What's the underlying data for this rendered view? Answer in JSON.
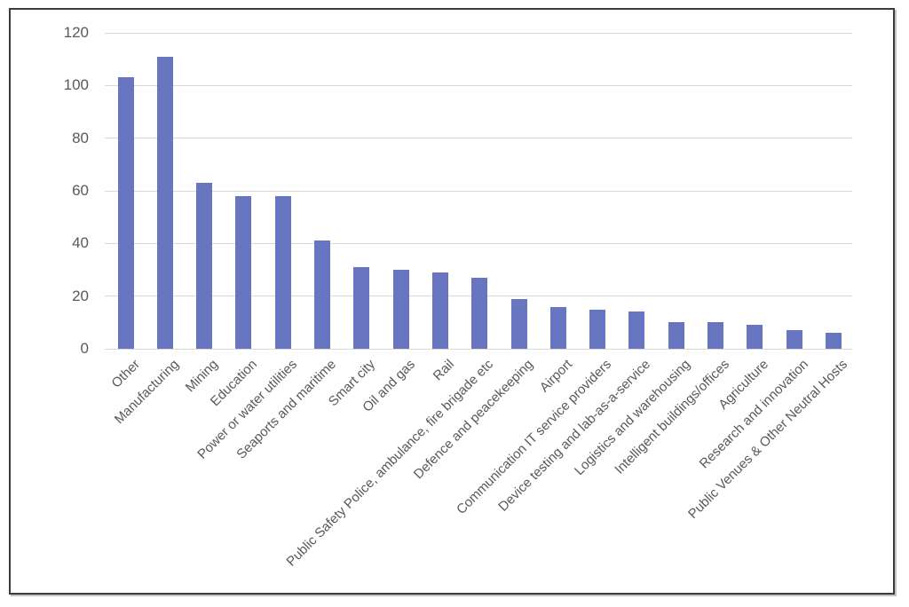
{
  "figure": {
    "background_color": "#ffffff",
    "frame_border_color": "#3c3c3c"
  },
  "chart_data": {
    "type": "bar",
    "title": "",
    "xlabel": "",
    "ylabel": "",
    "categories": [
      "Other",
      "Manufacturing",
      "Mining",
      "Education",
      "Power or water utilities",
      "Seaports and maritime",
      "Smart city",
      "Oil and gas",
      "Rail",
      "Public Safety Police, ambulance, fire brigade etc",
      "Defence and peacekeeping",
      "Airport",
      "Communication IT service providers",
      "Device testing and lab-as-a-service",
      "Logistics and warehousing",
      "Intelligent buildings/offices",
      "Agriculture",
      "Research and innovation",
      "Public Venues & Other Neutral Hosts"
    ],
    "values": [
      103,
      111,
      63,
      58,
      58,
      41,
      31,
      30,
      29,
      27,
      19,
      16,
      15,
      14,
      10,
      10,
      9,
      7,
      6
    ],
    "ylim": [
      0,
      120
    ],
    "yticks": [
      0,
      20,
      40,
      60,
      80,
      100,
      120
    ],
    "grid": true,
    "legend_position": "none",
    "x_label_rotation_deg": 45,
    "bar_color": "#6876c1",
    "gridline_color": "#d9d9d9",
    "axis_text_color": "#595959"
  }
}
